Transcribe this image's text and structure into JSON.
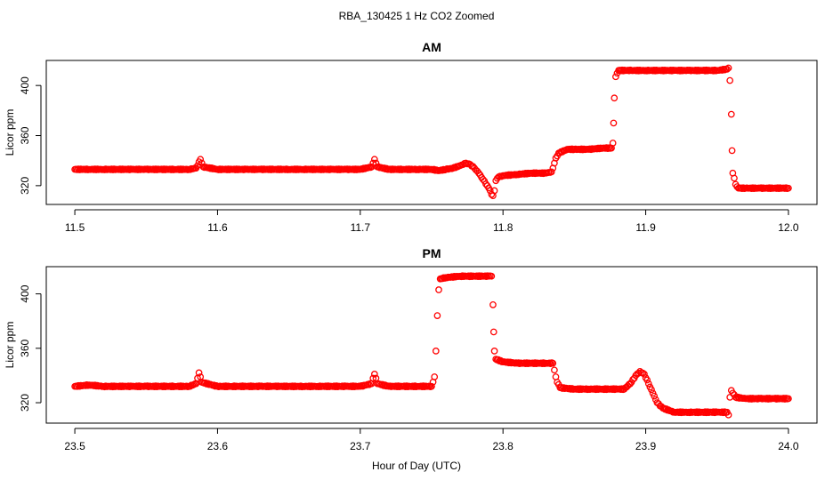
{
  "figure": {
    "title": "RBA_130425  1 Hz CO2 Zoomed",
    "xlabel": "Hour of Day (UTC)"
  },
  "colors": {
    "points": "#ff0000",
    "axes": "#000000",
    "background": "#ffffff"
  },
  "chart_data": [
    {
      "type": "scatter",
      "title": "AM",
      "xlabel": "",
      "ylabel": "Licor ppm",
      "xlim": [
        11.5,
        12.0
      ],
      "ylim": [
        305,
        420
      ],
      "xticks": [
        "11.5",
        "11.6",
        "11.7",
        "11.8",
        "11.9",
        "12.0"
      ],
      "yticks": [
        "320",
        "360",
        "400"
      ],
      "grid": false,
      "series": [
        {
          "marker": "open-circle",
          "points": [
            [
              11.5,
              333
            ],
            [
              11.51,
              333
            ],
            [
              11.52,
              333
            ],
            [
              11.53,
              333
            ],
            [
              11.54,
              333
            ],
            [
              11.55,
              333
            ],
            [
              11.56,
              333
            ],
            [
              11.57,
              333
            ],
            [
              11.58,
              333
            ],
            [
              11.585,
              334
            ],
            [
              11.586,
              336
            ],
            [
              11.587,
              339
            ],
            [
              11.588,
              341
            ],
            [
              11.589,
              338
            ],
            [
              11.59,
              335
            ],
            [
              11.6,
              333
            ],
            [
              11.61,
              333
            ],
            [
              11.62,
              333
            ],
            [
              11.63,
              333
            ],
            [
              11.64,
              333
            ],
            [
              11.65,
              333
            ],
            [
              11.66,
              333
            ],
            [
              11.67,
              333
            ],
            [
              11.68,
              333
            ],
            [
              11.69,
              333
            ],
            [
              11.7,
              333
            ],
            [
              11.708,
              335
            ],
            [
              11.709,
              338
            ],
            [
              11.71,
              341
            ],
            [
              11.711,
              338
            ],
            [
              11.712,
              335
            ],
            [
              11.72,
              333
            ],
            [
              11.73,
              333
            ],
            [
              11.74,
              333
            ],
            [
              11.75,
              333
            ],
            [
              11.755,
              332
            ],
            [
              11.76,
              333
            ],
            [
              11.765,
              334
            ],
            [
              11.77,
              336
            ],
            [
              11.774,
              338
            ],
            [
              11.777,
              337
            ],
            [
              11.78,
              334
            ],
            [
              11.783,
              330
            ],
            [
              11.786,
              325
            ],
            [
              11.789,
              320
            ],
            [
              11.791,
              316
            ],
            [
              11.792,
              313
            ],
            [
              11.793,
              312
            ],
            [
              11.794,
              316
            ],
            [
              11.795,
              324
            ],
            [
              11.797,
              327
            ],
            [
              11.8,
              328
            ],
            [
              11.81,
              329
            ],
            [
              11.82,
              330
            ],
            [
              11.83,
              330
            ],
            [
              11.834,
              331
            ],
            [
              11.835,
              334
            ],
            [
              11.836,
              338
            ],
            [
              11.837,
              342
            ],
            [
              11.839,
              346
            ],
            [
              11.845,
              349
            ],
            [
              11.85,
              349
            ],
            [
              11.86,
              349
            ],
            [
              11.87,
              350
            ],
            [
              11.876,
              350
            ],
            [
              11.877,
              354
            ],
            [
              11.8775,
              370
            ],
            [
              11.878,
              390
            ],
            [
              11.879,
              407
            ],
            [
              11.881,
              412
            ],
            [
              11.89,
              412
            ],
            [
              11.9,
              412
            ],
            [
              11.91,
              412
            ],
            [
              11.92,
              412
            ],
            [
              11.93,
              412
            ],
            [
              11.94,
              412
            ],
            [
              11.95,
              412
            ],
            [
              11.957,
              413
            ],
            [
              11.958,
              414
            ],
            [
              11.959,
              404
            ],
            [
              11.96,
              377
            ],
            [
              11.9605,
              348
            ],
            [
              11.961,
              330
            ],
            [
              11.962,
              326
            ],
            [
              11.963,
              321
            ],
            [
              11.965,
              318
            ],
            [
              11.97,
              318
            ],
            [
              11.98,
              318
            ],
            [
              11.99,
              318
            ],
            [
              12.0,
              318
            ]
          ]
        }
      ]
    },
    {
      "type": "scatter",
      "title": "PM",
      "xlabel": "",
      "ylabel": "Licor ppm",
      "xlim": [
        23.5,
        24.0
      ],
      "ylim": [
        305,
        420
      ],
      "xticks": [
        "23.5",
        "23.6",
        "23.7",
        "23.8",
        "23.9",
        "24.0"
      ],
      "yticks": [
        "320",
        "360",
        "400"
      ],
      "grid": false,
      "series": [
        {
          "marker": "open-circle",
          "points": [
            [
              23.5,
              332
            ],
            [
              23.51,
              333
            ],
            [
              23.52,
              332
            ],
            [
              23.53,
              332
            ],
            [
              23.54,
              332
            ],
            [
              23.55,
              332
            ],
            [
              23.56,
              332
            ],
            [
              23.57,
              332
            ],
            [
              23.58,
              332
            ],
            [
              23.585,
              334
            ],
            [
              23.586,
              338
            ],
            [
              23.587,
              342
            ],
            [
              23.588,
              339
            ],
            [
              23.589,
              335
            ],
            [
              23.6,
              332
            ],
            [
              23.61,
              332
            ],
            [
              23.62,
              332
            ],
            [
              23.63,
              332
            ],
            [
              23.64,
              332
            ],
            [
              23.65,
              332
            ],
            [
              23.66,
              332
            ],
            [
              23.67,
              332
            ],
            [
              23.68,
              332
            ],
            [
              23.69,
              332
            ],
            [
              23.7,
              332
            ],
            [
              23.708,
              334
            ],
            [
              23.709,
              338
            ],
            [
              23.71,
              341
            ],
            [
              23.711,
              338
            ],
            [
              23.712,
              334
            ],
            [
              23.72,
              332
            ],
            [
              23.73,
              332
            ],
            [
              23.74,
              332
            ],
            [
              23.75,
              332
            ],
            [
              23.752,
              339
            ],
            [
              23.753,
              358
            ],
            [
              23.754,
              384
            ],
            [
              23.755,
              403
            ],
            [
              23.756,
              411
            ],
            [
              23.76,
              412
            ],
            [
              23.77,
              413
            ],
            [
              23.78,
              413
            ],
            [
              23.79,
              413
            ],
            [
              23.792,
              413
            ],
            [
              23.793,
              392
            ],
            [
              23.7935,
              372
            ],
            [
              23.794,
              358
            ],
            [
              23.795,
              352
            ],
            [
              23.8,
              350
            ],
            [
              23.81,
              349
            ],
            [
              23.82,
              349
            ],
            [
              23.83,
              349
            ],
            [
              23.835,
              349
            ],
            [
              23.836,
              344
            ],
            [
              23.837,
              339
            ],
            [
              23.838,
              335
            ],
            [
              23.84,
              331
            ],
            [
              23.85,
              330
            ],
            [
              23.86,
              330
            ],
            [
              23.87,
              330
            ],
            [
              23.88,
              330
            ],
            [
              23.885,
              330
            ],
            [
              23.89,
              335
            ],
            [
              23.893,
              340
            ],
            [
              23.896,
              343
            ],
            [
              23.899,
              341
            ],
            [
              23.902,
              334
            ],
            [
              23.905,
              327
            ],
            [
              23.908,
              320
            ],
            [
              23.912,
              316
            ],
            [
              23.92,
              313
            ],
            [
              23.93,
              313
            ],
            [
              23.94,
              313
            ],
            [
              23.95,
              313
            ],
            [
              23.957,
              313
            ],
            [
              23.958,
              311
            ],
            [
              23.959,
              324
            ],
            [
              23.96,
              329
            ],
            [
              23.963,
              324
            ],
            [
              23.97,
              323
            ],
            [
              23.98,
              323
            ],
            [
              23.99,
              323
            ],
            [
              24.0,
              323
            ]
          ]
        }
      ]
    }
  ]
}
